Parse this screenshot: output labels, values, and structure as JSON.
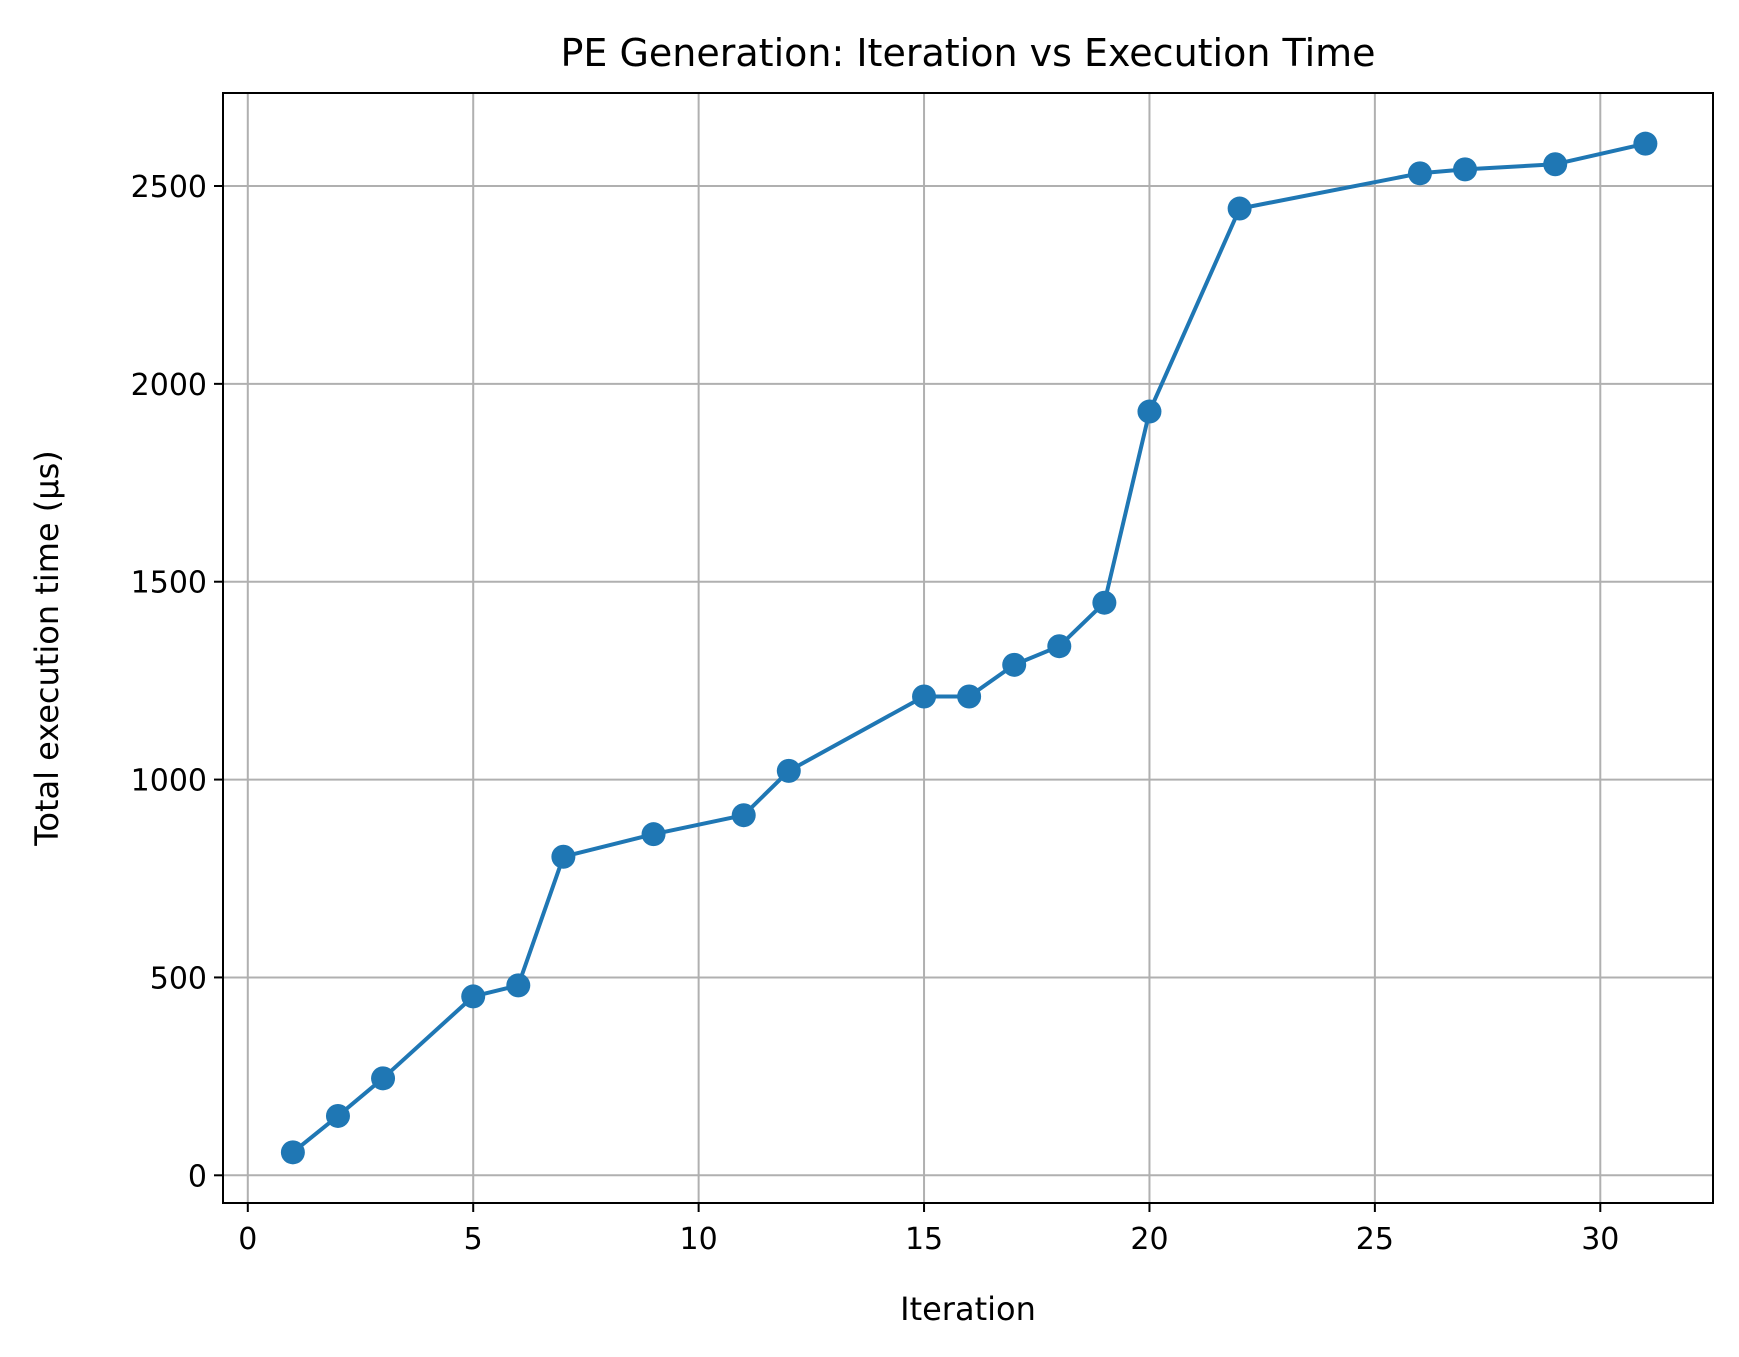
{
  "chart_data": {
    "type": "line",
    "title": "PE Generation: Iteration vs Execution Time",
    "xlabel": "Iteration",
    "ylabel": "Total execution time (μs)",
    "xlim": [
      -0.55,
      32.5
    ],
    "ylim": [
      -70,
      2735
    ],
    "x_ticks": [
      0,
      5,
      10,
      15,
      20,
      25,
      30
    ],
    "y_ticks": [
      0,
      500,
      1000,
      1500,
      2000,
      2500
    ],
    "grid": true,
    "legend": "none",
    "series": [
      {
        "color": "#1f77b4",
        "marker": "circle",
        "x": [
          1,
          2,
          3,
          5,
          6,
          7,
          9,
          11,
          12,
          15,
          16,
          17,
          18,
          19,
          20,
          22,
          26,
          27,
          29,
          31
        ],
        "y": [
          58,
          150,
          245,
          452,
          480,
          805,
          862,
          910,
          1022,
          1210,
          1210,
          1290,
          1337,
          1447,
          1930,
          2443,
          2532,
          2542,
          2555,
          2607
        ]
      }
    ]
  }
}
